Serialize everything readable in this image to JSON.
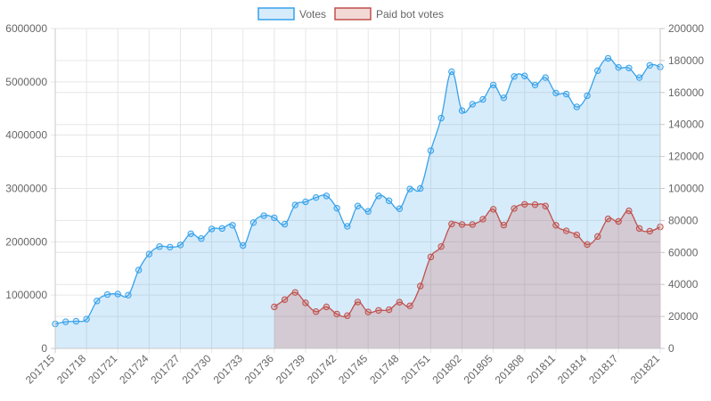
{
  "colors": {
    "votes_line": "#36a2eb",
    "votes_fill": "rgba(54,162,235,0.2)",
    "paid_line": "#c0504d",
    "paid_fill": "rgba(200,80,70,0.22)",
    "grid": "#e6e6e6",
    "axis": "#c8c8c8",
    "text": "#666666"
  },
  "chart_data": {
    "type": "line",
    "title": "",
    "legend_position": "top",
    "grid": true,
    "legend": [
      "Votes",
      "Paid bot votes"
    ],
    "x": [
      "201715",
      "201716",
      "201717",
      "201718",
      "201719",
      "201720",
      "201721",
      "201722",
      "201723",
      "201724",
      "201725",
      "201726",
      "201727",
      "201728",
      "201729",
      "201730",
      "201731",
      "201732",
      "201733",
      "201734",
      "201735",
      "201736",
      "201737",
      "201738",
      "201739",
      "201740",
      "201741",
      "201742",
      "201743",
      "201744",
      "201745",
      "201746",
      "201747",
      "201748",
      "201749",
      "201750",
      "201751",
      "201752",
      "201801",
      "201802",
      "201803",
      "201804",
      "201805",
      "201806",
      "201807",
      "201808",
      "201809",
      "201810",
      "201811",
      "201812",
      "201813",
      "201814",
      "201815",
      "201816",
      "201817",
      "201818",
      "201819",
      "201820",
      "201821"
    ],
    "x_tick_labels": [
      "201715",
      "201718",
      "201721",
      "201724",
      "201727",
      "201730",
      "201733",
      "201736",
      "201739",
      "201742",
      "201745",
      "201748",
      "201751",
      "201802",
      "201805",
      "201808",
      "201811",
      "201814",
      "201817",
      "201821"
    ],
    "y_left": {
      "min": 0,
      "max": 6000000,
      "ticks": [
        "0",
        "1000000",
        "2000000",
        "3000000",
        "4000000",
        "5000000",
        "6000000"
      ]
    },
    "y_right": {
      "min": 0,
      "max": 200000,
      "ticks": [
        "0",
        "20000",
        "40000",
        "60000",
        "80000",
        "100000",
        "120000",
        "140000",
        "160000",
        "180000",
        "200000"
      ]
    },
    "series": [
      {
        "name": "Votes",
        "axis": "left",
        "values": [
          460000,
          500000,
          510000,
          550000,
          890000,
          1010000,
          1020000,
          1000000,
          1470000,
          1770000,
          1910000,
          1900000,
          1940000,
          2150000,
          2060000,
          2240000,
          2250000,
          2310000,
          1930000,
          2360000,
          2490000,
          2450000,
          2330000,
          2690000,
          2750000,
          2830000,
          2860000,
          2630000,
          2290000,
          2670000,
          2570000,
          2860000,
          2770000,
          2620000,
          2990000,
          3000000,
          3710000,
          4320000,
          5190000,
          4460000,
          4580000,
          4670000,
          4940000,
          4700000,
          5100000,
          5110000,
          4940000,
          5080000,
          4790000,
          4770000,
          4530000,
          4740000,
          5210000,
          5440000,
          5270000,
          5260000,
          5080000,
          5310000,
          5280000
        ]
      },
      {
        "name": "Paid bot votes",
        "axis": "right",
        "values": [
          null,
          null,
          null,
          null,
          null,
          null,
          null,
          null,
          null,
          null,
          null,
          null,
          null,
          null,
          null,
          null,
          null,
          null,
          null,
          null,
          null,
          26000,
          30500,
          35000,
          28500,
          23000,
          26000,
          21500,
          20500,
          29000,
          22800,
          23800,
          24200,
          28900,
          26600,
          39000,
          57200,
          63700,
          77800,
          77500,
          77500,
          80800,
          87000,
          77100,
          87500,
          90100,
          89900,
          89000,
          77000,
          73500,
          71000,
          65000,
          70000,
          81000,
          79400,
          86000,
          75000,
          73300,
          76000
        ]
      }
    ]
  }
}
